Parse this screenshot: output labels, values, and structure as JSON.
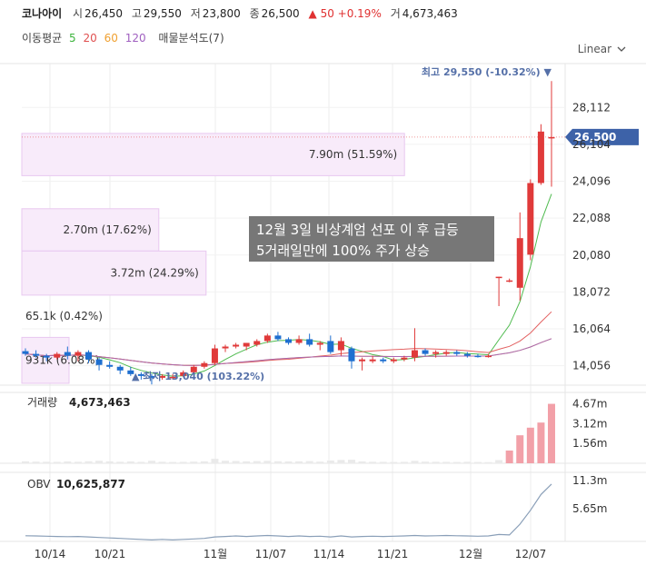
{
  "header": {
    "name": "코나아이",
    "open_label": "시",
    "open": "26,450",
    "high_label": "고",
    "high": "29,550",
    "low_label": "저",
    "low": "23,800",
    "close_label": "종",
    "close": "26,500",
    "change_arrow": "▲",
    "change": "50",
    "change_pct": "+0.19%",
    "vol_label": "거",
    "volume": "4,673,463"
  },
  "indicators": {
    "ma_label": "이동평균",
    "ma": [
      {
        "period": "5",
        "color": "#3cb43c"
      },
      {
        "period": "20",
        "color": "#e05050"
      },
      {
        "period": "60",
        "color": "#f0a030"
      },
      {
        "period": "120",
        "color": "#a060c0"
      }
    ],
    "profile_label": "매물분석도(7)"
  },
  "scale_mode": "Linear",
  "annotation": {
    "line1": "12월 3일 비상계엄 선포 이 후 급등",
    "line2": "5거래일만에 100% 주가 상승"
  },
  "chart_data": {
    "type": "candlestick",
    "x_ticks": [
      "10/14",
      "10/21",
      "11월",
      "11/07",
      "11/14",
      "11/21",
      "12월",
      "12/07"
    ],
    "y_ticks": [
      "28,112",
      "26,104",
      "24,096",
      "22,088",
      "20,080",
      "18,072",
      "16,064",
      "14,056"
    ],
    "ylim": [
      13000,
      30500
    ],
    "last_price": "26,500",
    "last_price_value": 26500,
    "max_label": "최고 29,550 (-10.32%)",
    "min_label": "최저 13,040 (103.22%)",
    "candles": [
      {
        "o": 14850,
        "h": 15000,
        "l": 14600,
        "c": 14700
      },
      {
        "o": 14700,
        "h": 14900,
        "l": 14500,
        "c": 14600
      },
      {
        "o": 14600,
        "h": 14700,
        "l": 14300,
        "c": 14500
      },
      {
        "o": 14500,
        "h": 14800,
        "l": 14400,
        "c": 14700
      },
      {
        "o": 14800,
        "h": 15100,
        "l": 14400,
        "c": 14600
      },
      {
        "o": 14600,
        "h": 14900,
        "l": 14300,
        "c": 14800
      },
      {
        "o": 14800,
        "h": 14900,
        "l": 14200,
        "c": 14400
      },
      {
        "o": 14400,
        "h": 14500,
        "l": 13800,
        "c": 14100
      },
      {
        "o": 14100,
        "h": 14300,
        "l": 13900,
        "c": 14000
      },
      {
        "o": 14000,
        "h": 14100,
        "l": 13600,
        "c": 13800
      },
      {
        "o": 13800,
        "h": 14000,
        "l": 13500,
        "c": 13600
      },
      {
        "o": 13600,
        "h": 13700,
        "l": 13300,
        "c": 13500
      },
      {
        "o": 13500,
        "h": 13600,
        "l": 13040,
        "c": 13400
      },
      {
        "o": 13400,
        "h": 13600,
        "l": 13300,
        "c": 13500
      },
      {
        "o": 13400,
        "h": 13600,
        "l": 13300,
        "c": 13450
      },
      {
        "o": 13500,
        "h": 13800,
        "l": 13450,
        "c": 13700
      },
      {
        "o": 13700,
        "h": 14100,
        "l": 13600,
        "c": 14000
      },
      {
        "o": 14000,
        "h": 14300,
        "l": 13900,
        "c": 14200
      },
      {
        "o": 14200,
        "h": 15200,
        "l": 14100,
        "c": 15000
      },
      {
        "o": 15000,
        "h": 15200,
        "l": 14800,
        "c": 15100
      },
      {
        "o": 15100,
        "h": 15300,
        "l": 15000,
        "c": 15200
      },
      {
        "o": 15100,
        "h": 15300,
        "l": 14900,
        "c": 15300
      },
      {
        "o": 15200,
        "h": 15500,
        "l": 15100,
        "c": 15400
      },
      {
        "o": 15400,
        "h": 15800,
        "l": 15300,
        "c": 15700
      },
      {
        "o": 15700,
        "h": 15900,
        "l": 15400,
        "c": 15500
      },
      {
        "o": 15500,
        "h": 15600,
        "l": 15200,
        "c": 15300
      },
      {
        "o": 15300,
        "h": 15700,
        "l": 15200,
        "c": 15500
      },
      {
        "o": 15500,
        "h": 15800,
        "l": 15100,
        "c": 15200
      },
      {
        "o": 15200,
        "h": 15400,
        "l": 14900,
        "c": 15300
      },
      {
        "o": 15400,
        "h": 15700,
        "l": 14700,
        "c": 14800
      },
      {
        "o": 14900,
        "h": 15600,
        "l": 14600,
        "c": 15400
      },
      {
        "o": 15000,
        "h": 15100,
        "l": 13900,
        "c": 14300
      },
      {
        "o": 14300,
        "h": 14500,
        "l": 13800,
        "c": 14400
      },
      {
        "o": 14300,
        "h": 14600,
        "l": 14200,
        "c": 14400
      },
      {
        "o": 14400,
        "h": 14500,
        "l": 14200,
        "c": 14300
      },
      {
        "o": 14300,
        "h": 14500,
        "l": 14200,
        "c": 14400
      },
      {
        "o": 14400,
        "h": 14600,
        "l": 14300,
        "c": 14500
      },
      {
        "o": 14500,
        "h": 16100,
        "l": 14300,
        "c": 14900
      },
      {
        "o": 14900,
        "h": 15000,
        "l": 14600,
        "c": 14700
      },
      {
        "o": 14700,
        "h": 14900,
        "l": 14500,
        "c": 14800
      },
      {
        "o": 14700,
        "h": 14900,
        "l": 14600,
        "c": 14800
      },
      {
        "o": 14800,
        "h": 14900,
        "l": 14600,
        "c": 14700
      },
      {
        "o": 14700,
        "h": 14800,
        "l": 14500,
        "c": 14600
      },
      {
        "o": 14600,
        "h": 14700,
        "l": 14500,
        "c": 14550
      },
      {
        "o": 14550,
        "h": 14700,
        "l": 14500,
        "c": 14600
      },
      {
        "o": 18900,
        "h": 18900,
        "l": 17300,
        "c": 18900
      },
      {
        "o": 18700,
        "h": 18800,
        "l": 18600,
        "c": 18700
      },
      {
        "o": 18300,
        "h": 22400,
        "l": 17600,
        "c": 21000
      },
      {
        "o": 20100,
        "h": 24200,
        "l": 19800,
        "c": 24000
      },
      {
        "o": 24000,
        "h": 27200,
        "l": 23900,
        "c": 26800
      },
      {
        "o": 26450,
        "h": 29550,
        "l": 23800,
        "c": 26500
      }
    ],
    "volume_panel": {
      "label": "거래량",
      "value": "4,673,463",
      "y_ticks": [
        "4.67m",
        "3.12m",
        "1.56m"
      ],
      "ymax": 5000000,
      "values": [
        150000,
        130000,
        120000,
        110000,
        140000,
        120000,
        160000,
        200000,
        150000,
        120000,
        140000,
        110000,
        200000,
        120000,
        100000,
        110000,
        130000,
        150000,
        350000,
        200000,
        180000,
        150000,
        170000,
        190000,
        160000,
        140000,
        150000,
        170000,
        130000,
        220000,
        260000,
        280000,
        140000,
        120000,
        110000,
        100000,
        110000,
        190000,
        130000,
        120000,
        110000,
        100000,
        120000,
        100000,
        90000,
        250000,
        1000000,
        2200000,
        2800000,
        3200000,
        4673463
      ]
    },
    "obv_panel": {
      "label": "OBV",
      "value": "10,625,877",
      "y_ticks": [
        "11.3m",
        "5.65m"
      ],
      "ymax": 13000000,
      "values": [
        150000,
        100000,
        50000,
        0,
        -50000,
        0,
        -100000,
        -200000,
        -300000,
        -400000,
        -500000,
        -600000,
        -700000,
        -600000,
        -700000,
        -600000,
        -500000,
        -400000,
        -100000,
        0,
        100000,
        0,
        100000,
        200000,
        100000,
        0,
        100000,
        0,
        50000,
        -100000,
        100000,
        -100000,
        0,
        50000,
        0,
        50000,
        100000,
        200000,
        100000,
        150000,
        200000,
        150000,
        100000,
        50000,
        100000,
        400000,
        300000,
        2500000,
        5300000,
        8500000,
        10625877
      ]
    },
    "volume_profile": [
      {
        "label": "7.90m (51.59%)",
        "price_top": 26700,
        "price_bottom": 24400,
        "frac": 0.81
      },
      {
        "label": "2.70m (17.62%)",
        "price_top": 22600,
        "price_bottom": 20300,
        "frac": 0.29
      },
      {
        "label": "3.72m (24.29%)",
        "price_top": 20300,
        "price_bottom": 17900,
        "frac": 0.39
      },
      {
        "label": "65.1k (0.42%)",
        "price_top": 17900,
        "price_bottom": 15600,
        "frac": 0.0
      },
      {
        "label": "931k (6.08%)",
        "price_top": 15600,
        "price_bottom": 13100,
        "frac": 0.1
      }
    ]
  }
}
